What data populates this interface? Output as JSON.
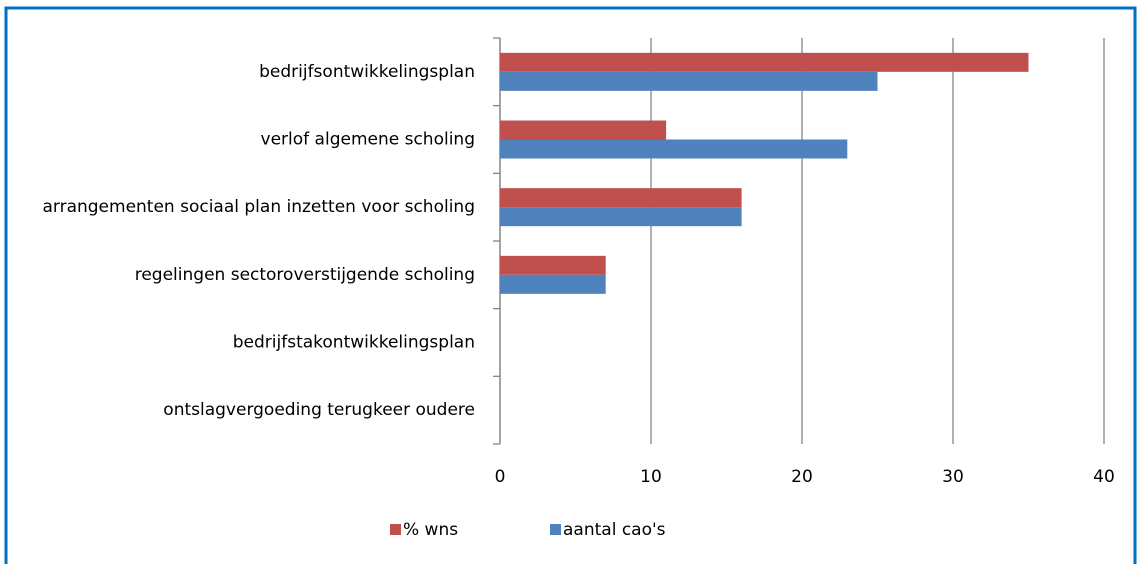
{
  "chart_data": {
    "type": "hbar",
    "categories": [
      "bedrijfsontwikkelingsplan",
      "verlof algemene scholing",
      "arrangementen sociaal plan inzetten voor scholing",
      "regelingen sectoroverstijgende scholing",
      "bedrijfstakontwikkelingsplan",
      "ontslagvergoeding terugkeer oudere"
    ],
    "series": [
      {
        "name": "% wns",
        "color": "#c0504d",
        "values": [
          35,
          11,
          16,
          7,
          0,
          0
        ]
      },
      {
        "name": "aantal cao's",
        "color": "#4f81bd",
        "values": [
          25,
          23,
          16,
          7,
          0,
          0
        ]
      }
    ],
    "xlim": [
      0,
      40
    ],
    "xticks": [
      0,
      10,
      20,
      30,
      40
    ],
    "grid": true,
    "legend": "bottom"
  }
}
